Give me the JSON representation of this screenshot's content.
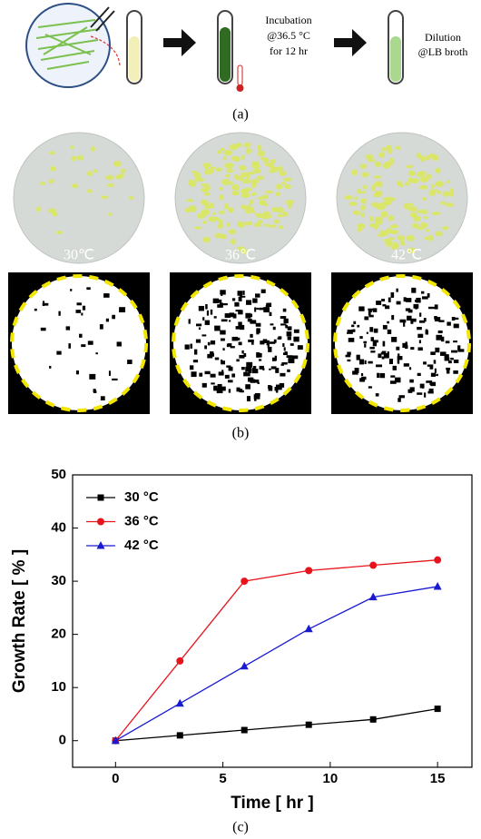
{
  "panel_a": {
    "label": "(a)",
    "incubation": [
      "Incubation",
      "@36.5 °C",
      "for 12 hr"
    ],
    "dilution": [
      "Dilution",
      "@LB broth"
    ]
  },
  "panel_b": {
    "label": "(b)",
    "temperatures": [
      "30℃",
      "36℃",
      "42℃"
    ]
  },
  "panel_c": {
    "label": "(c)"
  },
  "chart_data": {
    "type": "line",
    "x_label": "Time [ hr ]",
    "y_label": "Growth Rate [ % ]",
    "x": [
      0,
      3,
      6,
      9,
      12,
      15
    ],
    "series": [
      {
        "name": "30 °C",
        "color": "#000000",
        "marker": "square",
        "values": [
          0,
          1,
          2,
          3,
          4,
          6
        ]
      },
      {
        "name": "36 °C",
        "color": "#e8141c",
        "marker": "circle",
        "values": [
          0,
          15,
          30,
          32,
          33,
          34
        ]
      },
      {
        "name": "42 °C",
        "color": "#1a1ad0",
        "marker": "triangle",
        "values": [
          0,
          7,
          14,
          21,
          27,
          29
        ]
      }
    ],
    "xlim": [
      -2,
      16.6
    ],
    "ylim": [
      -5,
      50
    ],
    "xticks": [
      0,
      5,
      10,
      15
    ],
    "yticks": [
      0,
      10,
      20,
      30,
      40,
      50
    ],
    "legend": "upper left"
  }
}
